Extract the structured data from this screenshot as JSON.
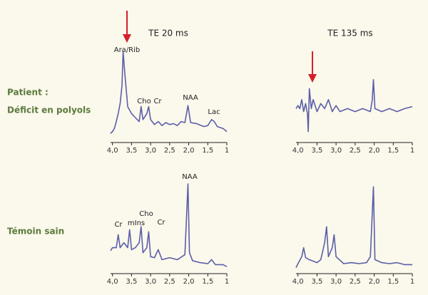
{
  "column_titles": [
    "TE 20 ms",
    "TE 135 ms"
  ],
  "row_labels": [
    "Patient :",
    "Déficit en polyols",
    "Témoin sain"
  ],
  "chart_data": [
    {
      "type": "line",
      "x": [
        4.05,
        4.0,
        3.95,
        3.9,
        3.85,
        3.8,
        3.75,
        3.72,
        3.68,
        3.6,
        3.5,
        3.4,
        3.3,
        3.25,
        3.2,
        3.1,
        3.05,
        3.0,
        2.9,
        2.8,
        2.7,
        2.6,
        2.5,
        2.4,
        2.3,
        2.2,
        2.1,
        2.02,
        1.95,
        1.8,
        1.6,
        1.5,
        1.4,
        1.33,
        1.25,
        1.1,
        1.0
      ],
      "series": [
        {
          "color": "#5a5fa8",
          "values": [
            9,
            11,
            14,
            21,
            29,
            39,
            57,
            91,
            71,
            36,
            29,
            25,
            21,
            36,
            23,
            29,
            36,
            23,
            18,
            21,
            17,
            20,
            18,
            19,
            17,
            21,
            20,
            37,
            20,
            19,
            16,
            17,
            23,
            21,
            16,
            14,
            11
          ]
        }
      ],
      "xlim": [
        4.05,
        1.0
      ],
      "ylim": [
        0,
        100
      ],
      "xticks": [
        {
          "value": 4,
          "label": "4,0"
        },
        {
          "value": 3.5,
          "label": "3,5"
        },
        {
          "value": 3,
          "label": "3,0"
        },
        {
          "value": 2.5,
          "label": "2,5"
        },
        {
          "value": 2,
          "label": "2,0"
        },
        {
          "value": 1.5,
          "label": "1,5"
        },
        1
      ],
      "annotations": [
        "Ara/Rib",
        "Cho",
        "Cr",
        "NAA",
        "Lac"
      ]
    },
    {
      "type": "line",
      "x": [
        4.05,
        4.0,
        3.95,
        3.9,
        3.85,
        3.8,
        3.75,
        3.73,
        3.7,
        3.65,
        3.6,
        3.5,
        3.4,
        3.3,
        3.2,
        3.1,
        3.0,
        2.9,
        2.7,
        2.5,
        2.3,
        2.1,
        2.05,
        2.02,
        1.98,
        1.8,
        1.6,
        1.4,
        1.2,
        1.0
      ],
      "series": [
        {
          "color": "#5a5fa8",
          "values": [
            34,
            37,
            34,
            43,
            31,
            39,
            29,
            11,
            54,
            34,
            43,
            31,
            39,
            34,
            43,
            31,
            37,
            31,
            34,
            31,
            34,
            31,
            43,
            63,
            34,
            31,
            34,
            31,
            34,
            36
          ]
        }
      ],
      "xlim": [
        4.05,
        1.0
      ],
      "ylim": [
        0,
        100
      ],
      "xticks": [
        {
          "value": 4,
          "label": "4,0"
        },
        {
          "value": 3.5,
          "label": "3,5"
        },
        {
          "value": 3,
          "label": "3,0"
        },
        {
          "value": 2.5,
          "label": "2,5"
        },
        {
          "value": 2,
          "label": "2,0"
        },
        {
          "value": 1.5,
          "label": "1,5"
        },
        1
      ],
      "annotations": []
    },
    {
      "type": "line",
      "x": [
        4.05,
        4.0,
        3.9,
        3.85,
        3.8,
        3.7,
        3.6,
        3.55,
        3.5,
        3.4,
        3.3,
        3.25,
        3.2,
        3.1,
        3.05,
        3.0,
        2.9,
        2.8,
        2.7,
        2.5,
        2.3,
        2.1,
        2.02,
        1.98,
        1.9,
        1.7,
        1.5,
        1.4,
        1.3,
        1.1,
        1.0
      ],
      "series": [
        {
          "color": "#5a5fa8",
          "values": [
            23,
            26,
            26,
            39,
            26,
            31,
            26,
            44,
            24,
            26,
            31,
            47,
            21,
            26,
            42,
            17,
            16,
            24,
            14,
            16,
            14,
            19,
            90,
            21,
            13,
            11,
            10,
            14,
            9,
            9,
            7
          ]
        }
      ],
      "xlim": [
        4.05,
        1.0
      ],
      "ylim": [
        0,
        100
      ],
      "xticks": [
        {
          "value": 4,
          "label": "4,0"
        },
        {
          "value": 3.5,
          "label": "3,5"
        },
        {
          "value": 3,
          "label": "3,0"
        },
        {
          "value": 2.5,
          "label": "2,5"
        },
        {
          "value": 2,
          "label": "2,0"
        },
        {
          "value": 1.5,
          "label": "1,5"
        },
        1
      ],
      "annotations": [
        "Cr",
        "mIns",
        "Cho",
        "Cr",
        "NAA"
      ]
    },
    {
      "type": "line",
      "x": [
        4.05,
        4.0,
        3.9,
        3.85,
        3.8,
        3.7,
        3.5,
        3.4,
        3.3,
        3.25,
        3.2,
        3.1,
        3.05,
        3.0,
        2.8,
        2.6,
        2.4,
        2.2,
        2.1,
        2.02,
        1.98,
        1.8,
        1.6,
        1.4,
        1.2,
        1.0
      ],
      "series": [
        {
          "color": "#5a5fa8",
          "values": [
            6,
            10,
            17,
            26,
            16,
            14,
            11,
            14,
            31,
            47,
            17,
            26,
            39,
            17,
            10,
            11,
            10,
            11,
            17,
            87,
            14,
            11,
            10,
            11,
            9,
            9
          ]
        }
      ],
      "xlim": [
        4.05,
        1.0
      ],
      "ylim": [
        0,
        100
      ],
      "xticks": [
        {
          "value": 4,
          "label": "4,0"
        },
        {
          "value": 3.5,
          "label": "3,5"
        },
        {
          "value": 3,
          "label": "3,0"
        },
        {
          "value": 2.5,
          "label": "2,5"
        },
        {
          "value": 2,
          "label": "2,0"
        },
        {
          "value": 1.5,
          "label": "1,5"
        },
        1
      ],
      "annotations": []
    }
  ]
}
